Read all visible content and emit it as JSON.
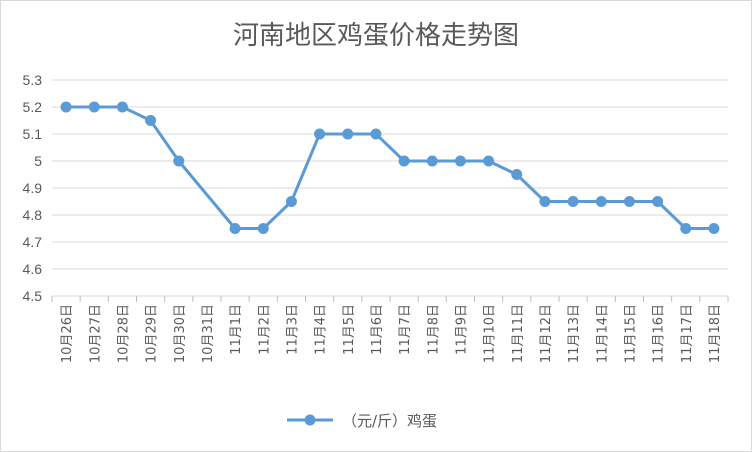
{
  "chart_data": {
    "type": "line",
    "title": "河南地区鸡蛋价格走势图",
    "categories": [
      "10月26日",
      "10月27日",
      "10月28日",
      "10月29日",
      "10月30日",
      "10月31日",
      "11月1日",
      "11月2日",
      "11月3日",
      "11月4日",
      "11月5日",
      "11月6日",
      "11月7日",
      "11月8日",
      "11月9日",
      "11月10日",
      "11月11日",
      "11月12日",
      "11月13日",
      "11月14日",
      "11月15日",
      "11月16日",
      "11月17日",
      "11月18日"
    ],
    "series": [
      {
        "name": "（元/斤）鸡蛋",
        "color": "#5b9bd5",
        "values": [
          5.2,
          5.2,
          5.2,
          5.15,
          5.0,
          null,
          4.75,
          4.75,
          4.85,
          5.1,
          5.1,
          5.1,
          5.0,
          5.0,
          5.0,
          5.0,
          4.95,
          4.85,
          4.85,
          4.85,
          4.85,
          4.85,
          4.75,
          4.75
        ]
      }
    ],
    "yticks": [
      "4.5",
      "4.6",
      "4.7",
      "4.8",
      "4.9",
      "5",
      "5.1",
      "5.2",
      "5.3"
    ],
    "ylim": [
      4.5,
      5.3
    ],
    "grid": true,
    "legend_position": "bottom"
  }
}
